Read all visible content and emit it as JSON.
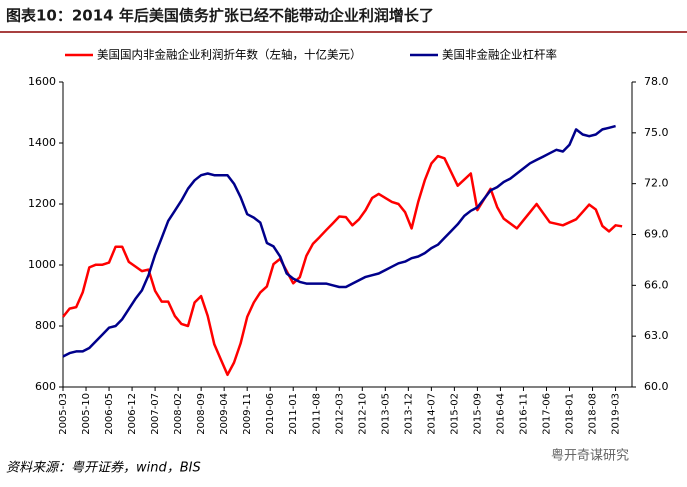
{
  "title": "图表10：2014 年后美国债务扩张已经不能带动企业利润增长了",
  "source": "资料来源：粤开证券，wind，BIS",
  "watermark": "粤开奇谋研究",
  "chart_data": {
    "type": "line",
    "x": [
      "2005-03",
      "2005-05",
      "2005-07",
      "2005-09",
      "2005-11",
      "2006-01",
      "2006-03",
      "2006-05",
      "2006-07",
      "2006-09",
      "2006-11",
      "2007-01",
      "2007-03",
      "2007-05",
      "2007-07",
      "2007-09",
      "2007-11",
      "2008-01",
      "2008-03",
      "2008-05",
      "2008-07",
      "2008-09",
      "2008-11",
      "2009-01",
      "2009-03",
      "2009-05",
      "2009-07",
      "2009-09",
      "2009-11",
      "2010-01",
      "2010-03",
      "2010-05",
      "2010-07",
      "2010-09",
      "2010-11",
      "2011-01",
      "2011-03",
      "2011-05",
      "2011-07",
      "2011-09",
      "2011-11",
      "2012-01",
      "2012-03",
      "2012-05",
      "2012-07",
      "2012-09",
      "2012-11",
      "2013-01",
      "2013-03",
      "2013-05",
      "2013-07",
      "2013-09",
      "2013-11",
      "2014-01",
      "2014-03",
      "2014-05",
      "2014-07",
      "2014-09",
      "2014-11",
      "2015-01",
      "2015-03",
      "2015-05",
      "2015-07",
      "2015-09",
      "2015-11",
      "2016-01",
      "2016-03",
      "2016-05",
      "2016-07",
      "2016-09",
      "2016-11",
      "2017-01",
      "2017-03",
      "2017-05",
      "2017-07",
      "2017-09",
      "2017-11",
      "2018-01",
      "2018-03",
      "2018-05",
      "2018-07",
      "2018-09",
      "2018-11",
      "2019-01",
      "2019-03",
      "2019-05"
    ],
    "series": [
      {
        "name": "美国国内非金融企业利润折年数（左轴，十亿美元）",
        "color": "#ff0000",
        "axis": "y",
        "values": [
          830,
          857,
          862,
          910,
          992,
          1001,
          1001,
          1008,
          1060,
          1060,
          1010,
          995,
          980,
          985,
          915,
          880,
          880,
          833,
          807,
          800,
          877,
          898,
          833,
          740,
          690,
          640,
          680,
          743,
          830,
          877,
          910,
          930,
          1003,
          1020,
          980,
          940,
          960,
          1030,
          1070,
          1091,
          1114,
          1136,
          1159,
          1157,
          1130,
          1150,
          1180,
          1220,
          1233,
          1220,
          1207,
          1200,
          1173,
          1120,
          1207,
          1278,
          1333,
          1357,
          1350,
          1305,
          1260,
          1280,
          1300,
          1180,
          1215,
          1250,
          1190,
          1152,
          1136,
          1120,
          1147,
          1173,
          1200,
          1170,
          1140,
          1135,
          1130,
          1140,
          1150,
          1174,
          1198,
          1182,
          1128,
          1110,
          1130,
          1127
        ]
      },
      {
        "name": "美国非金融企业杠杆率",
        "color": "#00008b",
        "axis": "y2",
        "values": [
          61.8,
          62.0,
          62.1,
          62.1,
          62.3,
          62.7,
          63.1,
          63.5,
          63.6,
          64.0,
          64.6,
          65.2,
          65.7,
          66.6,
          67.8,
          68.8,
          69.8,
          70.4,
          71.0,
          71.7,
          72.2,
          72.5,
          72.6,
          72.5,
          72.5,
          72.5,
          72.0,
          71.2,
          70.2,
          70.0,
          69.7,
          68.5,
          68.3,
          67.7,
          66.7,
          66.4,
          66.2,
          66.1,
          66.1,
          66.1,
          66.1,
          66.0,
          65.9,
          65.9,
          66.1,
          66.3,
          66.5,
          66.6,
          66.7,
          66.9,
          67.1,
          67.3,
          67.4,
          67.6,
          67.7,
          67.9,
          68.2,
          68.4,
          68.8,
          69.2,
          69.6,
          70.1,
          70.4,
          70.6,
          71.1,
          71.6,
          71.8,
          72.1,
          72.3,
          72.6,
          72.9,
          73.2,
          73.4,
          73.6,
          73.8,
          74.0,
          73.9,
          74.3,
          75.2,
          74.9,
          74.8,
          74.9,
          75.2,
          75.3,
          75.4,
          null
        ]
      }
    ],
    "xlim": [
      "2005-03",
      "2019-08"
    ],
    "xticks": [
      "2005-03",
      "2005-10",
      "2006-05",
      "2006-12",
      "2007-07",
      "2008-02",
      "2008-09",
      "2009-04",
      "2009-11",
      "2010-06",
      "2011-01",
      "2011-08",
      "2012-03",
      "2012-10",
      "2013-05",
      "2013-12",
      "2014-07",
      "2015-02",
      "2015-09",
      "2016-04",
      "2016-11",
      "2017-06",
      "2018-01",
      "2018-08",
      "2019-03"
    ],
    "ylim": [
      600,
      1600
    ],
    "yticks": [
      600,
      800,
      1000,
      1200,
      1400,
      1600
    ],
    "y2lim": [
      60,
      78
    ],
    "y2ticks": [
      {
        "value": 60,
        "label": "60.0"
      },
      {
        "value": 63,
        "label": "63.0"
      },
      {
        "value": 66,
        "label": "66.0"
      },
      {
        "value": 69,
        "label": "69.0"
      },
      {
        "value": 72,
        "label": "72.0"
      },
      {
        "value": 75,
        "label": "75.0"
      },
      {
        "value": 78,
        "label": "78.0"
      }
    ],
    "grid": false,
    "legend": "top"
  }
}
